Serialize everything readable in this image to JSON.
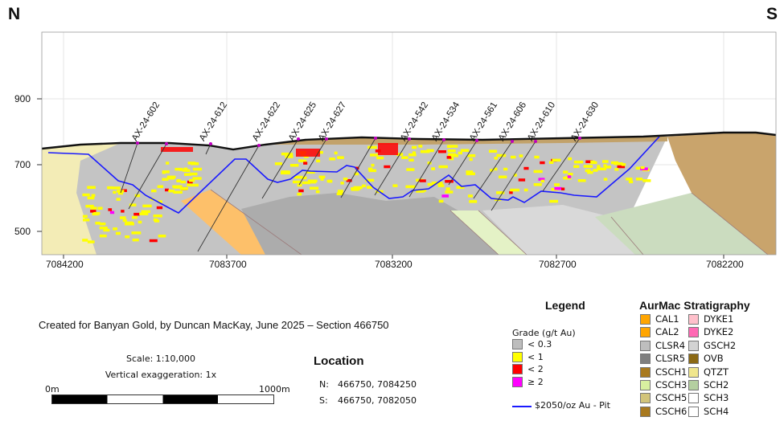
{
  "compass": {
    "north": "N",
    "south": "S"
  },
  "axes": {
    "y_ticks": [
      "900",
      "700",
      "500"
    ],
    "x_ticks": [
      "7084200",
      "7083700",
      "7083200",
      "7082700",
      "7082200"
    ]
  },
  "drill_holes": [
    "AX-24-602",
    "AX-24-612",
    "AX-24-622",
    "AX-24-625",
    "AX-24-627",
    "AX-24-542",
    "AX-24-534",
    "AX-24-561",
    "AX-24-606",
    "AX-24-610",
    "AX-24-630"
  ],
  "credit": "Created for Banyan Gold, by Duncan MacKay, June 2025 – Section 466750",
  "scale": {
    "text": "Scale: 1:10,000",
    "vertical": "Vertical exaggeration: 1x",
    "start": "0m",
    "end": "1000m"
  },
  "location": {
    "title": "Location",
    "n_label": "N:",
    "n_value": "466750, 7084250",
    "s_label": "S:",
    "s_value": "466750, 7082050"
  },
  "legend": {
    "title": "Legend",
    "grade_title": "Grade (g/t Au)",
    "grades": [
      {
        "label": "< 0.3",
        "color": "#bdbdbd"
      },
      {
        "label": "< 1",
        "color": "#ffff00"
      },
      {
        "label": "< 2",
        "color": "#ff0000"
      },
      {
        "label": "≥ 2",
        "color": "#ff00ff"
      }
    ],
    "pit_label": "$2050/oz Au - Pit",
    "pit_color": "#1a1aff"
  },
  "stratigraphy": {
    "title": "AurMac Stratigraphy",
    "units": [
      {
        "label": "CAL1",
        "color": "#ffa500"
      },
      {
        "label": "CAL2",
        "color": "#ffa500"
      },
      {
        "label": "CLSR4",
        "color": "#bebebe"
      },
      {
        "label": "CLSR5",
        "color": "#7f7f7f"
      },
      {
        "label": "CSCH1",
        "color": "#a8791e"
      },
      {
        "label": "CSCH3",
        "color": "#d8f0a0"
      },
      {
        "label": "CSCH5",
        "color": "#d2c47a"
      },
      {
        "label": "CSCH6",
        "color": "#a8791e"
      },
      {
        "label": "DYKE1",
        "color": "#ffc0cb"
      },
      {
        "label": "DYKE2",
        "color": "#ff69b4"
      },
      {
        "label": "GSCH2",
        "color": "#d3d3d3"
      },
      {
        "label": "OVB",
        "color": "#8b6914"
      },
      {
        "label": "QTZT",
        "color": "#f0e68c"
      },
      {
        "label": "SCH2",
        "color": "#b4cfa0"
      },
      {
        "label": "SCH3",
        "color": "#ffffff"
      },
      {
        "label": "SCH4",
        "color": "#ffffff"
      }
    ]
  }
}
